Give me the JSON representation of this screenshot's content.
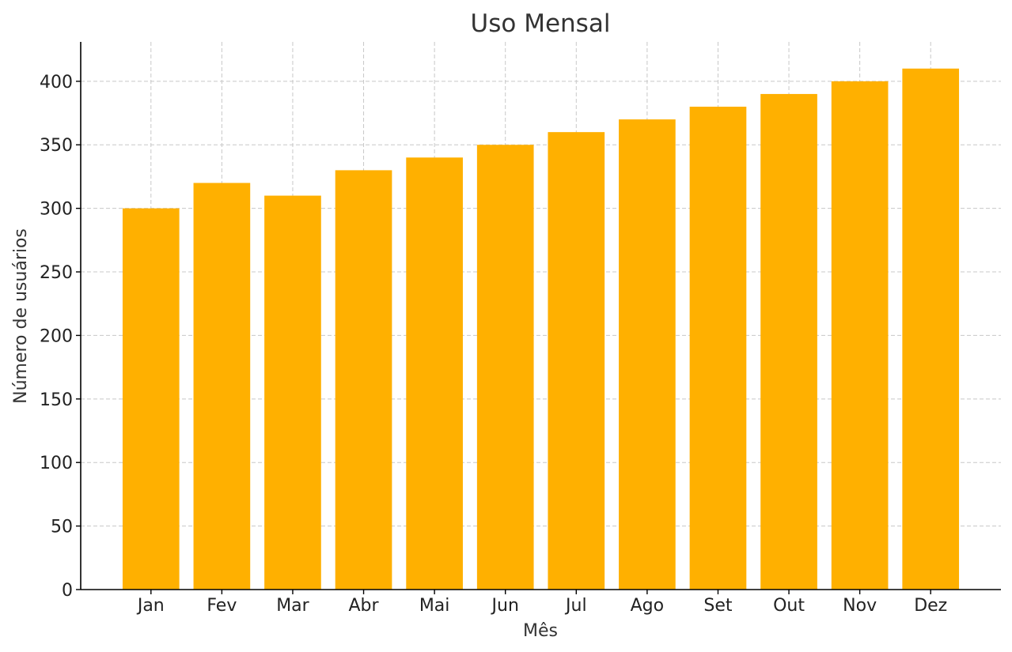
{
  "chart_data": {
    "type": "bar",
    "title": "Uso Mensal",
    "xlabel": "Mês",
    "ylabel": "Número de usuários",
    "categories": [
      "Jan",
      "Fev",
      "Mar",
      "Abr",
      "Mai",
      "Jun",
      "Jul",
      "Ago",
      "Set",
      "Out",
      "Nov",
      "Dez"
    ],
    "values": [
      300,
      320,
      310,
      330,
      340,
      350,
      360,
      370,
      380,
      390,
      400,
      410
    ],
    "ylim": [
      0,
      431
    ],
    "yticks": [
      0,
      50,
      100,
      150,
      200,
      250,
      300,
      350,
      400
    ],
    "grid": true,
    "bar_color": "#FFB000"
  }
}
